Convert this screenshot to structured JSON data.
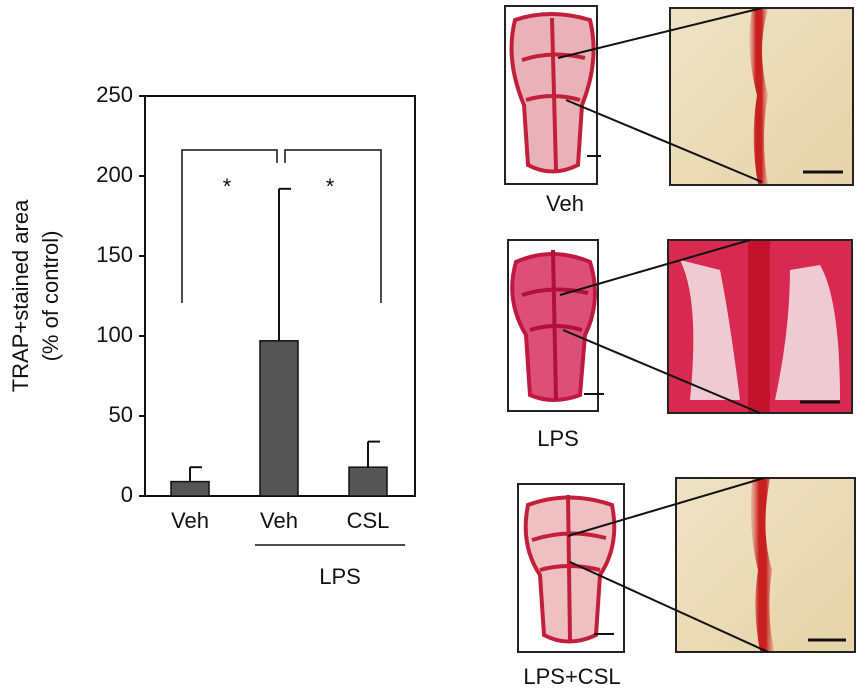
{
  "chart_data": {
    "type": "bar",
    "ylabel": [
      "TRAP+stained area",
      "(% of control)"
    ],
    "categories": [
      "Veh",
      "Veh",
      "CSL"
    ],
    "values": [
      9,
      97,
      18
    ],
    "errors": [
      9,
      95,
      16
    ],
    "color": "#555555",
    "ylim": [
      0,
      250
    ],
    "yticks": [
      0,
      50,
      100,
      150,
      200,
      250
    ],
    "group_label": "LPS",
    "annotations": [
      {
        "text": "*"
      },
      {
        "text": "*"
      }
    ]
  },
  "panels": {
    "labels": [
      "Veh",
      "LPS",
      "LPS+CSL"
    ]
  }
}
